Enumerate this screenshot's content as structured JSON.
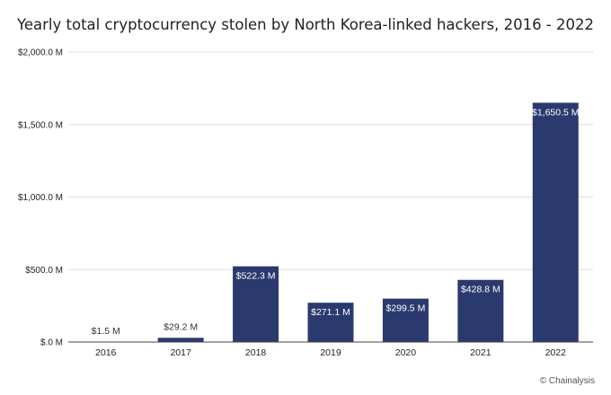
{
  "chart_data": {
    "type": "bar",
    "title": "Yearly total cryptocurrency stolen by North Korea-linked hackers, 2016 - 2022",
    "categories": [
      "2016",
      "2017",
      "2018",
      "2019",
      "2020",
      "2021",
      "2022"
    ],
    "values": [
      1.5,
      29.2,
      522.3,
      271.1,
      299.5,
      428.8,
      1650.5
    ],
    "data_labels": [
      "$1.5 M",
      "$29.2 M",
      "$522.3 M",
      "$271.1 M",
      "$299.5 M",
      "$428.8 M",
      "$1,650.5 M"
    ],
    "ylim": [
      0,
      2000
    ],
    "yticks": [
      0,
      500,
      1000,
      1500,
      2000
    ],
    "ytick_labels": [
      "$.0 M",
      "$500.0 M",
      "$1,000.0 M",
      "$1,500.0 M",
      "$2,000.0 M"
    ],
    "xlabel": "",
    "ylabel": "",
    "grid": true,
    "bar_color": "#2b3a6e",
    "grid_color": "#dddddd"
  },
  "source": "© Chainalysis"
}
